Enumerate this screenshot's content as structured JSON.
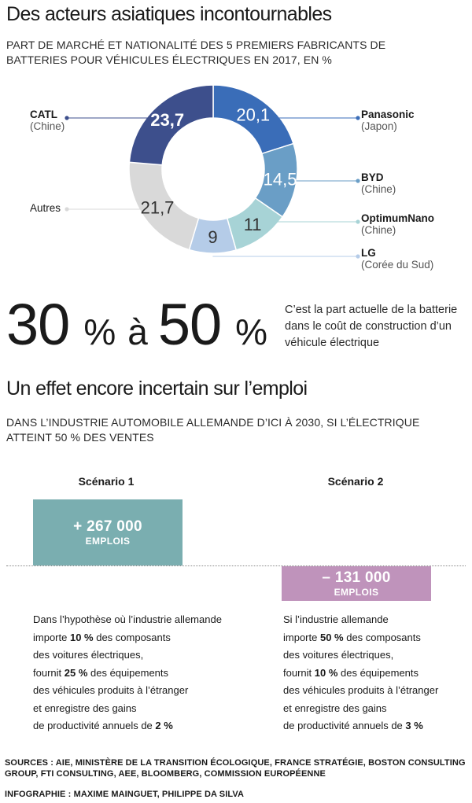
{
  "section1": {
    "title": "Des acteurs asiatiques incontournables",
    "subtitle": "PART DE MARCHÉ ET NATIONALITÉ DES 5 PREMIERS FABRICANTS DE BATTERIES POUR VÉHICULES ÉLECTRIQUES EN 2017, EN %"
  },
  "chart_data": {
    "type": "pie",
    "donut": true,
    "title": "",
    "slices": [
      {
        "name": "Panasonic",
        "country": "(Japon)",
        "value": 20.1,
        "label": "20,1",
        "color": "#3a6db8"
      },
      {
        "name": "BYD",
        "country": "(Chine)",
        "value": 14.5,
        "label": "14,5",
        "color": "#6a9ec6"
      },
      {
        "name": "OptimumNano",
        "country": "(Chine)",
        "value": 11,
        "label": "11",
        "color": "#a7d3d6"
      },
      {
        "name": "LG",
        "country": "(Corée du Sud)",
        "value": 9,
        "label": "9",
        "color": "#b5cce8"
      },
      {
        "name": "Autres",
        "country": "",
        "value": 21.7,
        "label": "21,7",
        "color": "#d9d9d9"
      },
      {
        "name": "CATL",
        "country": "(Chine)",
        "value": 23.7,
        "label": "23,7",
        "color": "#3d4f8c"
      }
    ]
  },
  "big_stat": {
    "value_from": "30",
    "value_to": "50",
    "percent_sign": "%",
    "connector": "à",
    "text": "C’est la part actuelle de la batterie dans le coût de construction d’un véhicule électrique"
  },
  "section2": {
    "title": "Un effet encore incertain sur l’emploi",
    "subtitle": "DANS L’INDUSTRIE AUTOMOBILE ALLEMANDE D’ICI À 2030, SI L’ÉLECTRIQUE ATTEINT 50 % DES VENTES"
  },
  "scenarios": [
    {
      "title": "Scénario 1",
      "value": "+ 267 000",
      "unit": "EMPLOIS",
      "color": "#7aaeb0",
      "text": {
        "l1": "Dans l’hypothèse où l’industrie allemande",
        "l2a": "importe ",
        "l2b": "10 %",
        "l2c": " des composants",
        "l3": "des voitures électriques,",
        "l4a": "fournit ",
        "l4b": "25 %",
        "l4c": " des équipements",
        "l5": "des véhicules produits à l’étranger",
        "l6": "et enregistre des gains",
        "l7a": "de productivité annuels de ",
        "l7b": "2 %"
      }
    },
    {
      "title": "Scénario 2",
      "value": "– 131 000",
      "unit": "EMPLOIS",
      "color": "#bf93bb",
      "text": {
        "l1": "Si l’industrie allemande",
        "l2a": "importe ",
        "l2b": "50 %",
        "l2c": " des composants",
        "l3": "des voitures électriques,",
        "l4a": "fournit ",
        "l4b": "10 %",
        "l4c": " des équipements",
        "l5": "des véhicules produits à l’étranger",
        "l6": "et enregistre des gains",
        "l7a": "de productivité annuels de ",
        "l7b": "3 %"
      }
    }
  ],
  "footer": {
    "sources": "SOURCES : AIE, MINISTÈRE DE LA TRANSITION ÉCOLOGIQUE, FRANCE STRATÉGIE, BOSTON CONSULTING GROUP, FTI CONSULTING, AEE, BLOOMBERG, COMMISSION EUROPÉENNE",
    "credits": "INFOGRAPHIE : MAXIME MAINGUET, PHILIPPE DA SILVA"
  }
}
